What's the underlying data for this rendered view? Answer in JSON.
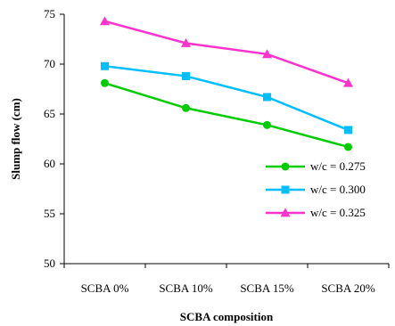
{
  "chart_data": {
    "type": "line",
    "categories": [
      "SCBA 0%",
      "SCBA 10%",
      "SCBA 15%",
      "SCBA 20%"
    ],
    "series": [
      {
        "name": "w/c = 0.275",
        "values": [
          68.1,
          65.6,
          63.9,
          61.7
        ],
        "color": "#00cc00",
        "marker": "circle"
      },
      {
        "name": "w/c = 0.300",
        "values": [
          69.8,
          68.8,
          66.7,
          63.4
        ],
        "color": "#00bfff",
        "marker": "square"
      },
      {
        "name": "w/c = 0.325",
        "values": [
          74.3,
          72.1,
          71.0,
          68.1
        ],
        "color": "#ff33cc",
        "marker": "triangle"
      }
    ],
    "title": "",
    "xlabel": "SCBA composition",
    "ylabel": "Slump flow (cm)",
    "ylim": [
      50,
      75
    ],
    "yticks": [
      50,
      55,
      60,
      65,
      70,
      75
    ],
    "grid": false,
    "legend_position": "lower-right"
  }
}
